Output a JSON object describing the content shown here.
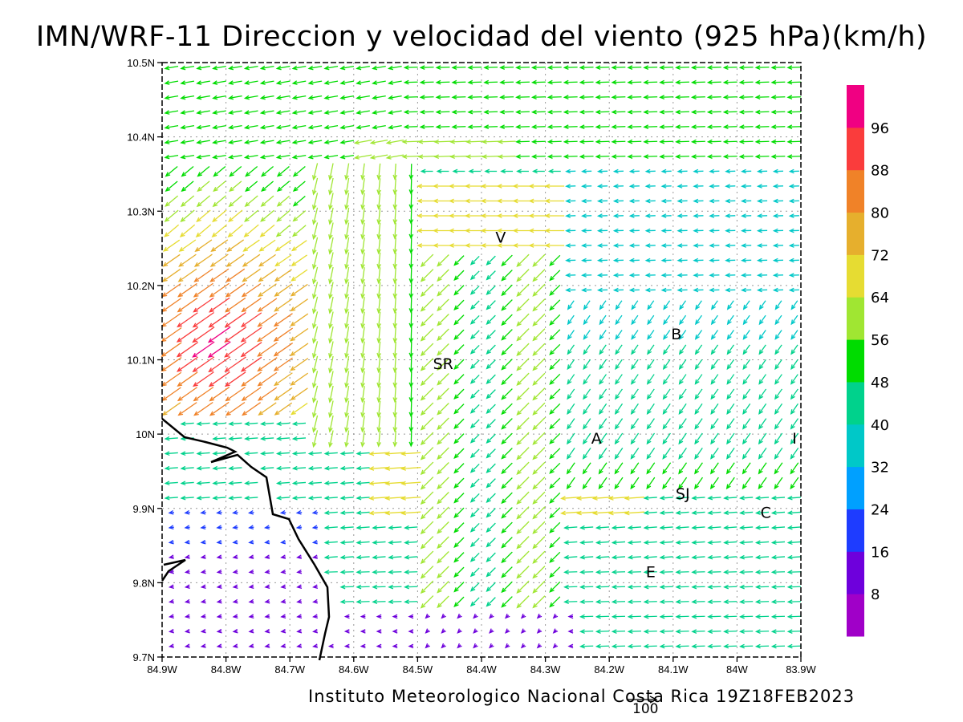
{
  "title": "IMN/WRF-11 Direccion y velocidad del viento (925 hPa)(km/h)",
  "footer": "Instituto Meteorologico Nacional Costa Rica 19Z18FEB2023",
  "reference_vector_label": "100",
  "map": {
    "lon_range": [
      -84.9,
      -83.9
    ],
    "lat_range": [
      9.7,
      10.5
    ],
    "lon_ticks": [
      {
        "v": -84.9,
        "label": "84.9W"
      },
      {
        "v": -84.8,
        "label": "84.8W"
      },
      {
        "v": -84.7,
        "label": "84.7W"
      },
      {
        "v": -84.6,
        "label": "84.6W"
      },
      {
        "v": -84.5,
        "label": "84.5W"
      },
      {
        "v": -84.4,
        "label": "84.4W"
      },
      {
        "v": -84.3,
        "label": "84.3W"
      },
      {
        "v": -84.2,
        "label": "84.2W"
      },
      {
        "v": -84.1,
        "label": "84.1W"
      },
      {
        "v": -84.0,
        "label": "84W"
      },
      {
        "v": -83.9,
        "label": "83.9W"
      }
    ],
    "lat_ticks": [
      {
        "v": 9.7,
        "label": "9.7N"
      },
      {
        "v": 9.8,
        "label": "9.8N"
      },
      {
        "v": 9.9,
        "label": "9.9N"
      },
      {
        "v": 10.0,
        "label": "10N"
      },
      {
        "v": 10.1,
        "label": "10.1N"
      },
      {
        "v": 10.2,
        "label": "10.2N"
      },
      {
        "v": 10.3,
        "label": "10.3N"
      },
      {
        "v": 10.4,
        "label": "10.4N"
      },
      {
        "v": 10.5,
        "label": "10.5N"
      }
    ],
    "grid": "dotted",
    "places": [
      {
        "label": "V",
        "lon": -84.37,
        "lat": 10.265
      },
      {
        "label": "SR",
        "lon": -84.46,
        "lat": 10.095
      },
      {
        "label": "B",
        "lon": -84.095,
        "lat": 10.135
      },
      {
        "label": "A",
        "lon": -84.22,
        "lat": 9.995
      },
      {
        "label": "I",
        "lon": -83.91,
        "lat": 9.995
      },
      {
        "label": "SJ",
        "lon": -84.085,
        "lat": 9.92
      },
      {
        "label": "C",
        "lon": -83.955,
        "lat": 9.895
      },
      {
        "label": "E",
        "lon": -84.135,
        "lat": 9.815
      }
    ],
    "coastline_color": "#000000"
  },
  "colorbar": {
    "labels": [
      "8",
      "16",
      "24",
      "32",
      "40",
      "48",
      "56",
      "64",
      "72",
      "80",
      "88",
      "96"
    ],
    "colors": [
      "#a000c8",
      "#6e00dc",
      "#1e3cff",
      "#00a0ff",
      "#00c8c8",
      "#00d28c",
      "#00dc00",
      "#a0e632",
      "#e6dc32",
      "#e6af2d",
      "#f08228",
      "#fa3c3c",
      "#f00082"
    ]
  }
}
